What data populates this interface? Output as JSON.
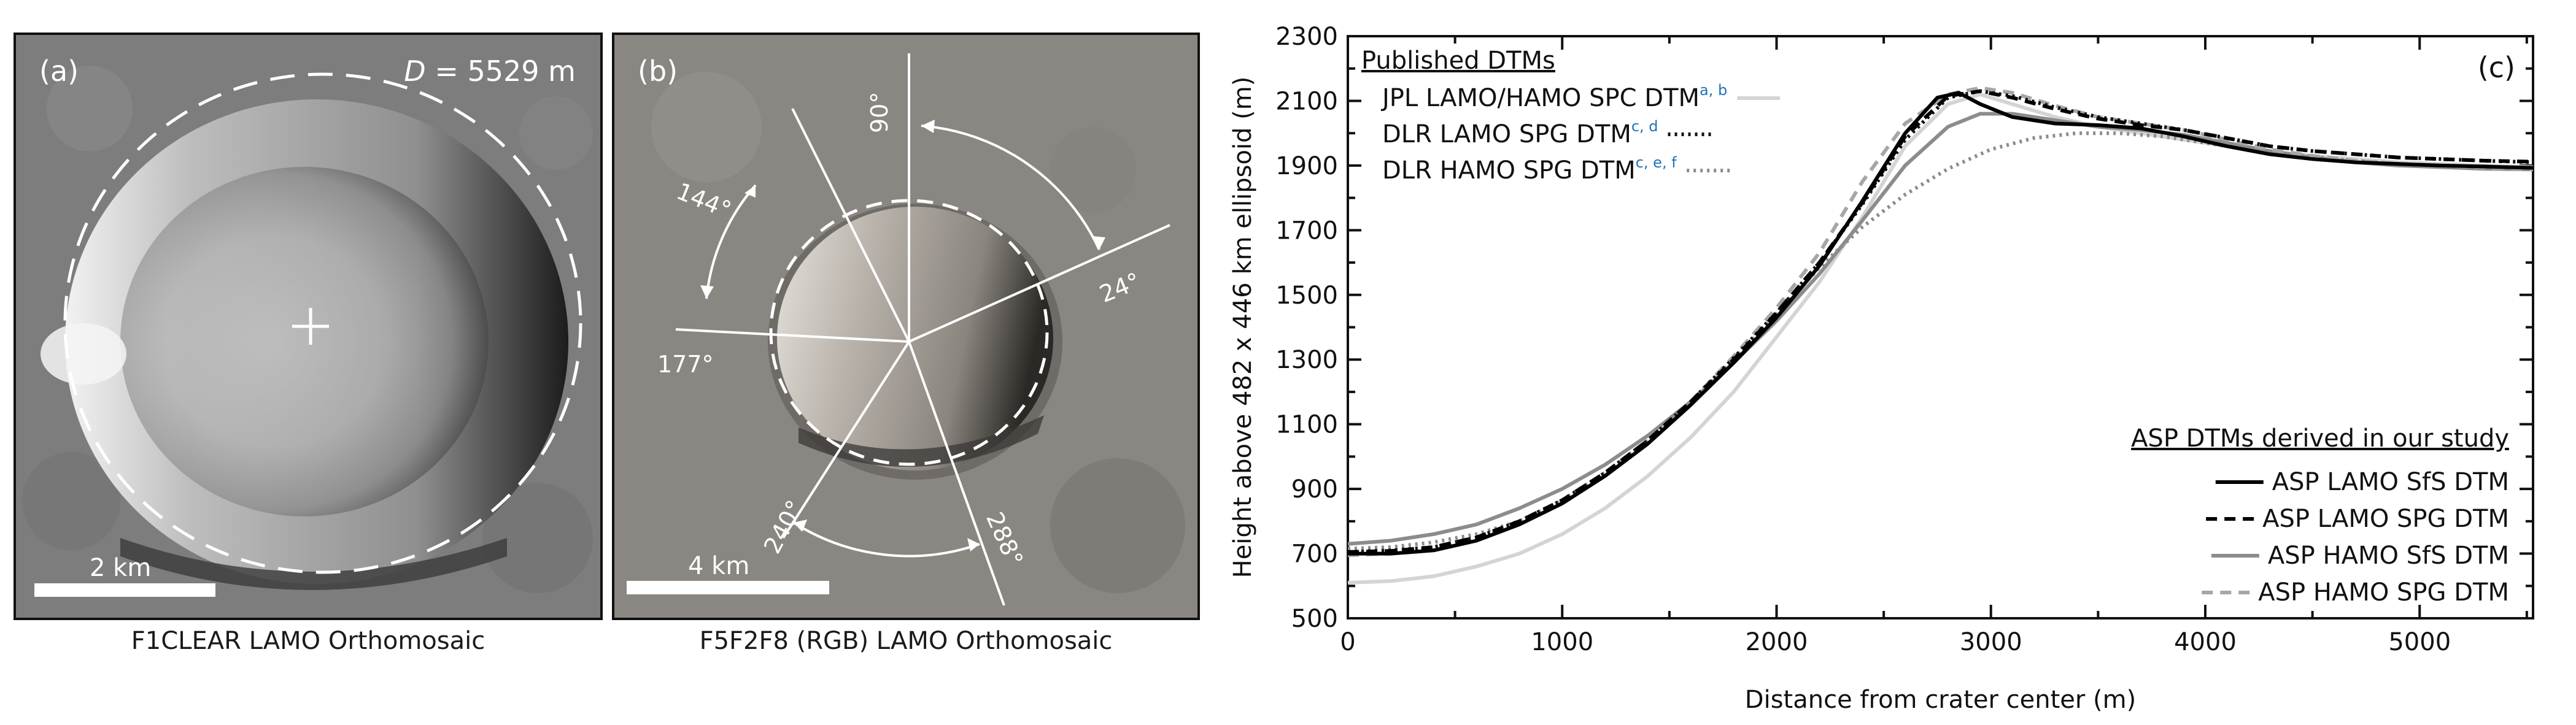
{
  "panel_a": {
    "label": "(a)",
    "diameter_var": "D",
    "diameter_value": " = 5529 m",
    "scale_label": "2 km",
    "caption": "F1CLEAR LAMO Orthomosaic"
  },
  "panel_b": {
    "label": "(b)",
    "scale_label": "4 km",
    "caption": "F5F2F8 (RGB) LAMO Orthomosaic",
    "angles": [
      "90°",
      "144°",
      "24°",
      "177°",
      "240°",
      "288°"
    ]
  },
  "chart_data": {
    "type": "line",
    "panel_label": "(c)",
    "title": "",
    "xlabel": "Distance from crater center (m)",
    "ylabel": "Height above 482 x 446 km ellipsoid (m)",
    "xlim": [
      0,
      5529
    ],
    "ylim": [
      500,
      2300
    ],
    "xticks": [
      0,
      1000,
      2000,
      3000,
      4000,
      5000
    ],
    "yticks": [
      500,
      700,
      900,
      1100,
      1300,
      1500,
      1700,
      1900,
      2100,
      2300
    ],
    "grid": false,
    "legend_published": {
      "heading": "Published DTMs",
      "entries": [
        {
          "label": "JPL LAMO/HAMO SPC DTM",
          "sup": "a, b"
        },
        {
          "label": "DLR LAMO SPG DTM",
          "sup": "c, d"
        },
        {
          "label": "DLR HAMO SPG DTM",
          "sup": "c, e, f"
        }
      ]
    },
    "legend_asp": {
      "heading": "ASP DTMs derived in our study",
      "entries": [
        "ASP LAMO SfS DTM",
        "ASP LAMO SPG DTM",
        "ASP HAMO SfS DTM",
        "ASP HAMO SPG DTM"
      ]
    },
    "series": [
      {
        "name": "JPL LAMO/HAMO SPC DTM",
        "color": "#d4d4d4",
        "dash": "solid",
        "x": [
          0,
          200,
          400,
          600,
          800,
          1000,
          1200,
          1400,
          1600,
          1800,
          2000,
          2200,
          2400,
          2600,
          2800,
          2950,
          3100,
          3300,
          3500,
          3700,
          3900,
          4100,
          4300,
          4500,
          4700,
          4900,
          5100,
          5300,
          5529
        ],
        "y": [
          610,
          615,
          630,
          660,
          700,
          760,
          840,
          940,
          1060,
          1200,
          1370,
          1540,
          1740,
          1960,
          2090,
          2120,
          2090,
          2050,
          2020,
          2000,
          1980,
          1960,
          1945,
          1930,
          1920,
          1910,
          1905,
          1900,
          1895
        ]
      },
      {
        "name": "DLR LAMO SPG DTM",
        "color": "#111111",
        "dash": "dot",
        "x": [
          0,
          200,
          400,
          600,
          800,
          1000,
          1200,
          1400,
          1600,
          1800,
          2000,
          2200,
          2400,
          2600,
          2800,
          2950,
          3100,
          3300,
          3500,
          3700,
          3900,
          4100,
          4300,
          4500,
          4700,
          4900,
          5100,
          5300,
          5529
        ],
        "y": [
          705,
          710,
          720,
          750,
          800,
          865,
          950,
          1050,
          1170,
          1305,
          1445,
          1600,
          1780,
          1980,
          2110,
          2130,
          2115,
          2080,
          2050,
          2030,
          2010,
          1985,
          1960,
          1945,
          1935,
          1925,
          1920,
          1915,
          1910
        ]
      },
      {
        "name": "DLR HAMO SPG DTM",
        "color": "#8c8c8c",
        "dash": "dot",
        "x": [
          0,
          200,
          400,
          600,
          800,
          1000,
          1200,
          1400,
          1600,
          1800,
          2000,
          2200,
          2400,
          2600,
          2800,
          3000,
          3200,
          3400,
          3600,
          3800,
          4000,
          4200,
          4400,
          4600,
          4800,
          5000,
          5200,
          5400,
          5529
        ],
        "y": [
          715,
          720,
          735,
          760,
          800,
          865,
          950,
          1050,
          1165,
          1300,
          1440,
          1585,
          1710,
          1810,
          1890,
          1950,
          1985,
          2000,
          2000,
          1990,
          1970,
          1950,
          1935,
          1920,
          1910,
          1900,
          1895,
          1890,
          1888
        ]
      },
      {
        "name": "ASP LAMO SfS DTM",
        "color": "#000000",
        "dash": "solid",
        "x": [
          0,
          200,
          400,
          600,
          800,
          1000,
          1200,
          1400,
          1600,
          1800,
          2000,
          2200,
          2400,
          2600,
          2750,
          2850,
          2950,
          3100,
          3300,
          3500,
          3700,
          3900,
          4100,
          4300,
          4500,
          4700,
          4900,
          5100,
          5300,
          5529
        ],
        "y": [
          700,
          700,
          710,
          740,
          790,
          855,
          940,
          1040,
          1160,
          1290,
          1430,
          1590,
          1790,
          2000,
          2110,
          2125,
          2090,
          2050,
          2030,
          2025,
          2015,
          1990,
          1960,
          1935,
          1920,
          1910,
          1905,
          1900,
          1897,
          1893
        ]
      },
      {
        "name": "ASP LAMO SPG DTM",
        "color": "#000000",
        "dash": "dash",
        "x": [
          0,
          200,
          400,
          600,
          800,
          1000,
          1200,
          1400,
          1600,
          1800,
          2000,
          2200,
          2400,
          2600,
          2800,
          2950,
          3100,
          3300,
          3500,
          3700,
          3900,
          4100,
          4300,
          4500,
          4700,
          4900,
          5100,
          5300,
          5529
        ],
        "y": [
          705,
          708,
          720,
          750,
          800,
          865,
          950,
          1050,
          1170,
          1300,
          1445,
          1600,
          1785,
          1990,
          2115,
          2130,
          2110,
          2075,
          2045,
          2025,
          2010,
          1985,
          1960,
          1945,
          1935,
          1925,
          1920,
          1915,
          1912
        ]
      },
      {
        "name": "ASP HAMO SfS DTM",
        "color": "#8c8c8c",
        "dash": "solid",
        "x": [
          0,
          200,
          400,
          600,
          800,
          1000,
          1200,
          1400,
          1600,
          1800,
          2000,
          2200,
          2400,
          2600,
          2800,
          2950,
          3100,
          3300,
          3500,
          3700,
          3900,
          4100,
          4300,
          4500,
          4700,
          4900,
          5100,
          5300,
          5529
        ],
        "y": [
          730,
          740,
          760,
          790,
          840,
          900,
          975,
          1065,
          1170,
          1290,
          1420,
          1565,
          1730,
          1900,
          2020,
          2060,
          2060,
          2040,
          2020,
          2010,
          1995,
          1970,
          1945,
          1925,
          1910,
          1900,
          1895,
          1890,
          1888
        ]
      },
      {
        "name": "ASP HAMO SPG DTM",
        "color": "#a6a6a6",
        "dash": "dash",
        "x": [
          0,
          200,
          400,
          600,
          800,
          1000,
          1200,
          1400,
          1600,
          1800,
          2000,
          2200,
          2400,
          2600,
          2800,
          2950,
          3100,
          3300,
          3500,
          3700,
          3900,
          4100,
          4300,
          4500,
          4700,
          4900,
          5100,
          5300,
          5529
        ],
        "y": [
          695,
          700,
          715,
          745,
          795,
          860,
          945,
          1050,
          1170,
          1310,
          1460,
          1630,
          1850,
          2030,
          2120,
          2140,
          2125,
          2085,
          2050,
          2030,
          2010,
          1980,
          1950,
          1930,
          1915,
          1905,
          1900,
          1893,
          1888
        ]
      }
    ]
  }
}
